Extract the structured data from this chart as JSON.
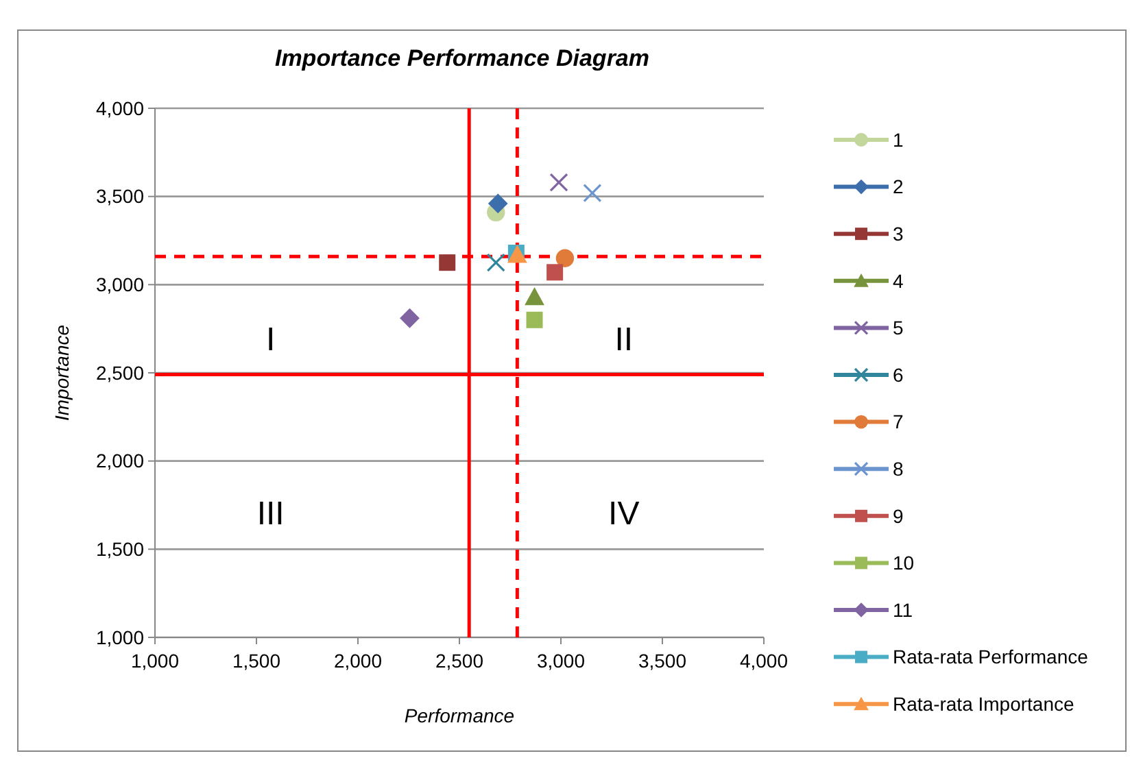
{
  "chart_data": {
    "type": "scatter",
    "title": "Importance Performance Diagram",
    "xlabel": "Performance",
    "ylabel": "Importance",
    "xlim": [
      1000,
      4000
    ],
    "ylim": [
      1000,
      4000
    ],
    "xticks": [
      {
        "value": 1000,
        "label": "1,000"
      },
      {
        "value": 1500,
        "label": "1,500"
      },
      {
        "value": 2000,
        "label": "2,000"
      },
      {
        "value": 2500,
        "label": "2,500"
      },
      {
        "value": 3000,
        "label": "3,000"
      },
      {
        "value": 3500,
        "label": "3,500"
      },
      {
        "value": 4000,
        "label": "4,000"
      }
    ],
    "yticks": [
      {
        "value": 1000,
        "label": "1,000"
      },
      {
        "value": 1500,
        "label": "1,500"
      },
      {
        "value": 2000,
        "label": "2,000"
      },
      {
        "value": 2500,
        "label": "2,500"
      },
      {
        "value": 3000,
        "label": "3,000"
      },
      {
        "value": 3500,
        "label": "3,500"
      },
      {
        "value": 4000,
        "label": "4,000"
      }
    ],
    "grid": "y",
    "legend": "right",
    "series": [
      {
        "name": "1",
        "color": "#c3d69b",
        "marker": "circle",
        "x": [
          2680
        ],
        "values": [
          3410
        ]
      },
      {
        "name": "2",
        "color": "#3c6eac",
        "marker": "diamond",
        "x": [
          2690
        ],
        "values": [
          3460
        ]
      },
      {
        "name": "3",
        "color": "#953735",
        "marker": "square",
        "x": [
          2440
        ],
        "values": [
          3125
        ]
      },
      {
        "name": "4",
        "color": "#77933c",
        "marker": "triangle",
        "x": [
          2870
        ],
        "values": [
          2930
        ]
      },
      {
        "name": "5",
        "color": "#8064a2",
        "marker": "cross",
        "x": [
          2990
        ],
        "values": [
          3580
        ]
      },
      {
        "name": "6",
        "color": "#31859c",
        "marker": "cross",
        "x": [
          2680
        ],
        "values": [
          3125
        ]
      },
      {
        "name": "7",
        "color": "#e07b39",
        "marker": "circle",
        "x": [
          3020
        ],
        "values": [
          3150
        ]
      },
      {
        "name": "8",
        "color": "#6c94cf",
        "marker": "cross",
        "x": [
          3155
        ],
        "values": [
          3520
        ]
      },
      {
        "name": "9",
        "color": "#c0504d",
        "marker": "square",
        "x": [
          2970
        ],
        "values": [
          3070
        ]
      },
      {
        "name": "10",
        "color": "#9bbb59",
        "marker": "square",
        "x": [
          2870
        ],
        "values": [
          2800
        ]
      },
      {
        "name": "11",
        "color": "#8064a2",
        "marker": "diamond",
        "x": [
          2255
        ],
        "values": [
          2810
        ]
      },
      {
        "name": "Rata-rata Performance",
        "color": "#4bacc6",
        "marker": "square",
        "x": [
          2780
        ],
        "values": [
          3180
        ]
      },
      {
        "name": "Rata-rata Importance",
        "color": "#f79646",
        "marker": "triangle",
        "x": [
          2785
        ],
        "values": [
          3170
        ]
      }
    ],
    "ref_lines": [
      {
        "axis": "x",
        "value": 2548,
        "color": "#ff0000",
        "line_style": "solid"
      },
      {
        "axis": "y",
        "value": 2490,
        "color": "#ff0000",
        "line_style": "solid"
      },
      {
        "axis": "x",
        "value": 2785,
        "color": "#ff0000",
        "line_style": "dashed"
      },
      {
        "axis": "y",
        "value": 3160,
        "color": "#ff0000",
        "line_style": "dashed"
      }
    ],
    "annotations": [
      "I",
      "II",
      "III",
      "IV"
    ]
  }
}
